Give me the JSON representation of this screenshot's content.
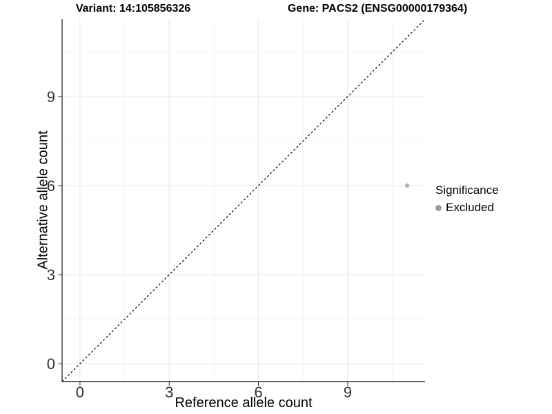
{
  "chart_data": {
    "type": "scatter",
    "title_left": "Variant: 14:105856326",
    "title_right": "Gene: PACS2 (ENSG00000179364)",
    "xlabel": "Reference allele count",
    "ylabel": "Alternative allele count",
    "xlim": [
      -0.6,
      11.6
    ],
    "ylim": [
      -0.6,
      11.6
    ],
    "x_ticks": [
      0,
      3,
      6,
      9
    ],
    "y_ticks": [
      0,
      3,
      6,
      9
    ],
    "x_minor_ticks": [
      1.5,
      4.5,
      7.5,
      10.5
    ],
    "y_minor_ticks": [
      1.5,
      4.5,
      7.5,
      10.5
    ],
    "grid": "major+minor",
    "aspect": "fixed 1:1",
    "points": [
      {
        "x": 11,
        "y": 6,
        "series": "Excluded"
      }
    ],
    "reference_line": {
      "type": "identity",
      "equation": "y = x",
      "style": "dashed",
      "color": "#000000"
    },
    "legend": {
      "title": "Significance",
      "position": "right",
      "items": [
        {
          "label": "Excluded",
          "marker": "circle",
          "color": "#9c9c9c"
        }
      ]
    },
    "colors": {
      "background": "#ffffff",
      "point": "#b4b4b4",
      "grid_major": "#e8e8e8",
      "grid_minor": "#f3f3f3",
      "axis_line": "#333333",
      "tick_text": "#333333"
    }
  }
}
